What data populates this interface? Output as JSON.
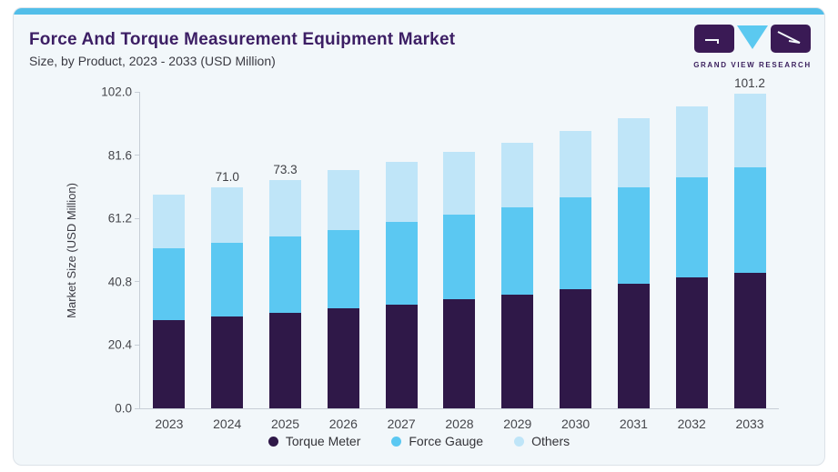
{
  "header": {
    "title": "Force And Torque Measurement Equipment Market",
    "subtitle": "Size, by Product, 2023 - 2033 (USD Million)"
  },
  "logo": {
    "text": "GRAND VIEW RESEARCH"
  },
  "chart_data": {
    "type": "bar",
    "stacked": true,
    "title": "Force And Torque Measurement Equipment Market Size, by Product, 2023 - 2033 (USD Million)",
    "categories": [
      "2023",
      "2024",
      "2025",
      "2026",
      "2027",
      "2028",
      "2029",
      "2030",
      "2031",
      "2032",
      "2033"
    ],
    "series": [
      {
        "name": "Torque Meter",
        "color": "#2F1848",
        "values": [
          28.5,
          29.5,
          30.6,
          32.1,
          33.3,
          35.1,
          36.5,
          38.4,
          40.0,
          42.2,
          43.6
        ]
      },
      {
        "name": "Force Gauge",
        "color": "#5BC8F2",
        "values": [
          22.9,
          23.8,
          24.6,
          25.3,
          26.6,
          27.2,
          28.1,
          29.3,
          31.0,
          32.1,
          33.9
        ]
      },
      {
        "name": "Others",
        "color": "#BFE5F8",
        "values": [
          17.2,
          17.7,
          18.1,
          19.2,
          19.4,
          20.0,
          20.8,
          21.4,
          22.1,
          22.7,
          23.7
        ]
      }
    ],
    "totals": [
      68.6,
      71.0,
      73.3,
      76.6,
      79.3,
      82.3,
      85.4,
      89.1,
      93.1,
      97.0,
      101.2
    ],
    "bar_labels": {
      "2024": "71.0",
      "2025": "73.3",
      "2033": "101.2"
    },
    "xlabel": "",
    "ylabel": "Market Size (USD Million)",
    "yticks": [
      0.0,
      20.4,
      40.8,
      61.2,
      81.6,
      102.0
    ],
    "ylim": [
      0,
      102.0
    ],
    "legend_position": "bottom",
    "grid": false
  },
  "colors": {
    "accent_bar": "#52BEE9",
    "card_background": "#F2F7FA",
    "title": "#3C1E64",
    "axis": "#C7CED6"
  }
}
